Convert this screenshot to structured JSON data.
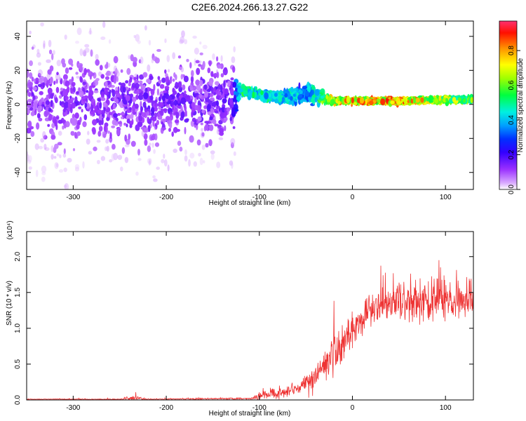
{
  "figure_title": "C2E6.2024.266.13.27.G22",
  "chart_data": [
    {
      "type": "heatmap",
      "xlabel": "Height of straight line (km)",
      "ylabel": "Frequency (Hz)",
      "xlim": [
        -350,
        130
      ],
      "ylim": [
        -50,
        49
      ],
      "x_ticks": [
        -300,
        -200,
        -100,
        0,
        100
      ],
      "y_ticks": [
        -40,
        -20,
        0,
        20,
        40
      ],
      "colorbar": {
        "label": "Normalized spectral amplitude",
        "range": [
          0,
          0.97
        ],
        "ticks": [
          0.0,
          0.2,
          0.4,
          0.6,
          0.8
        ],
        "colormap": [
          "#ffffff",
          "#c060ff",
          "#6a00ff",
          "#0000ff",
          "#00b0ff",
          "#00ffd0",
          "#00ff00",
          "#ffff00",
          "#ff8000",
          "#ff0000",
          "#ff3070"
        ]
      },
      "ridge": [
        {
          "x": -350,
          "center_hz": 2,
          "spread_hz": 40,
          "amplitude": 0.12
        },
        {
          "x": -250,
          "center_hz": 1,
          "spread_hz": 38,
          "amplitude": 0.13
        },
        {
          "x": -130,
          "center_hz": 2,
          "spread_hz": 35,
          "amplitude": 0.14
        },
        {
          "x": -120,
          "center_hz": 8,
          "spread_hz": 5,
          "amplitude": 0.5
        },
        {
          "x": -80,
          "center_hz": 4,
          "spread_hz": 6,
          "amplitude": 0.45
        },
        {
          "x": -45,
          "center_hz": 6,
          "spread_hz": 10,
          "amplitude": 0.4
        },
        {
          "x": -20,
          "center_hz": 2,
          "spread_hz": 3,
          "amplitude": 0.75
        },
        {
          "x": 50,
          "center_hz": 2,
          "spread_hz": 3,
          "amplitude": 0.8
        },
        {
          "x": 130,
          "center_hz": 3,
          "spread_hz": 3,
          "amplitude": 0.6
        }
      ]
    },
    {
      "type": "line",
      "xlabel": "Height of straight line (km)",
      "ylabel": "SNR (10 * v/v)",
      "y_multiplier": "(x10⁴)",
      "xlim": [
        -350,
        130
      ],
      "ylim": [
        0,
        2.35
      ],
      "x_ticks": [
        -300,
        -200,
        -100,
        0,
        100
      ],
      "y_ticks": [
        0.0,
        0.5,
        1.0,
        1.5,
        2.0
      ],
      "color": "#ee3333",
      "envelope": {
        "x": [
          -350,
          -250,
          -240,
          -230,
          -220,
          -110,
          -100,
          -85,
          -70,
          -50,
          -40,
          -25,
          -12,
          -10,
          0,
          10,
          30,
          50,
          70,
          90,
          110,
          130
        ],
        "base": [
          0.01,
          0.01,
          0.02,
          0.02,
          0.01,
          0.02,
          0.05,
          0.09,
          0.12,
          0.22,
          0.32,
          0.55,
          0.75,
          0.85,
          0.92,
          1.15,
          1.3,
          1.4,
          1.38,
          1.42,
          1.4,
          1.38
        ],
        "noise": [
          0.01,
          0.01,
          0.06,
          0.06,
          0.01,
          0.02,
          0.08,
          0.12,
          0.12,
          0.2,
          0.3,
          0.4,
          0.45,
          0.35,
          0.3,
          0.35,
          0.4,
          0.45,
          0.5,
          0.5,
          0.45,
          0.4
        ]
      }
    }
  ]
}
